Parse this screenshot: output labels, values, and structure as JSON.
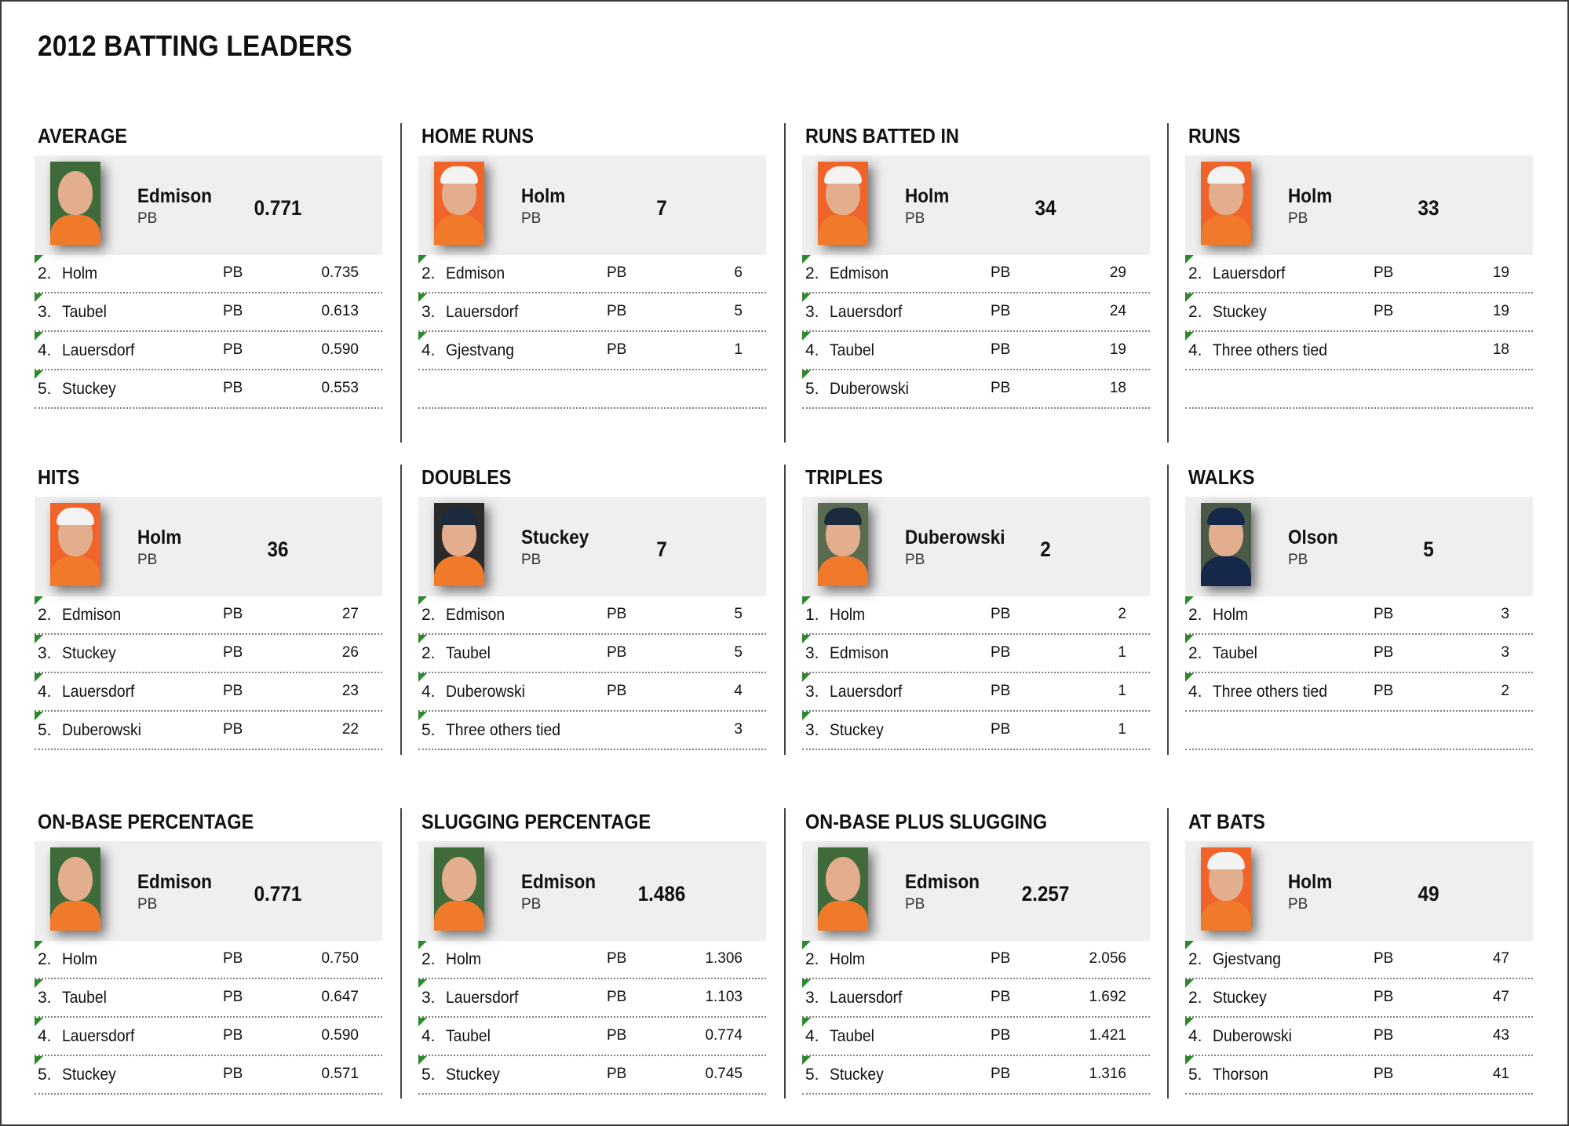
{
  "page": {
    "title": "2012 BATTING LEADERS"
  },
  "categories": [
    {
      "title": "AVERAGE",
      "leader": {
        "name": "Edmison",
        "team": "PB",
        "value": "0.771",
        "photo": "edmison"
      },
      "rows": [
        {
          "rank": "2.",
          "name": "Holm",
          "team": "PB",
          "value": "0.735"
        },
        {
          "rank": "3.",
          "name": "Taubel",
          "team": "PB",
          "value": "0.613"
        },
        {
          "rank": "4.",
          "name": "Lauersdorf",
          "team": "PB",
          "value": "0.590"
        },
        {
          "rank": "5.",
          "name": "Stuckey",
          "team": "PB",
          "value": "0.553"
        }
      ]
    },
    {
      "title": "HOME RUNS",
      "leader": {
        "name": "Holm",
        "team": "PB",
        "value": "7",
        "photo": "holm"
      },
      "rows": [
        {
          "rank": "2.",
          "name": "Edmison",
          "team": "PB",
          "value": "6"
        },
        {
          "rank": "3.",
          "name": "Lauersdorf",
          "team": "PB",
          "value": "5"
        },
        {
          "rank": "4.",
          "name": "Gjestvang",
          "team": "PB",
          "value": "1"
        },
        {
          "rank": "",
          "name": "",
          "team": "",
          "value": ""
        }
      ]
    },
    {
      "title": "RUNS BATTED IN",
      "leader": {
        "name": "Holm",
        "team": "PB",
        "value": "34",
        "photo": "holm"
      },
      "rows": [
        {
          "rank": "2.",
          "name": "Edmison",
          "team": "PB",
          "value": "29"
        },
        {
          "rank": "3.",
          "name": "Lauersdorf",
          "team": "PB",
          "value": "24"
        },
        {
          "rank": "4.",
          "name": "Taubel",
          "team": "PB",
          "value": "19"
        },
        {
          "rank": "5.",
          "name": "Duberowski",
          "team": "PB",
          "value": "18"
        }
      ]
    },
    {
      "title": "RUNS",
      "leader": {
        "name": "Holm",
        "team": "PB",
        "value": "33",
        "photo": "holm"
      },
      "rows": [
        {
          "rank": "2.",
          "name": "Lauersdorf",
          "team": "PB",
          "value": "19"
        },
        {
          "rank": "2.",
          "name": "Stuckey",
          "team": "PB",
          "value": "19"
        },
        {
          "rank": "4.",
          "name": "Three others tied",
          "team": "",
          "value": "18"
        },
        {
          "rank": "",
          "name": "",
          "team": "",
          "value": ""
        }
      ]
    },
    {
      "title": "HITS",
      "leader": {
        "name": "Holm",
        "team": "PB",
        "value": "36",
        "photo": "holm"
      },
      "rows": [
        {
          "rank": "2.",
          "name": "Edmison",
          "team": "PB",
          "value": "27"
        },
        {
          "rank": "3.",
          "name": "Stuckey",
          "team": "PB",
          "value": "26"
        },
        {
          "rank": "4.",
          "name": "Lauersdorf",
          "team": "PB",
          "value": "23"
        },
        {
          "rank": "5.",
          "name": "Duberowski",
          "team": "PB",
          "value": "22"
        }
      ]
    },
    {
      "title": "DOUBLES",
      "leader": {
        "name": "Stuckey",
        "team": "PB",
        "value": "7",
        "photo": "stuckey"
      },
      "rows": [
        {
          "rank": "2.",
          "name": "Edmison",
          "team": "PB",
          "value": "5"
        },
        {
          "rank": "2.",
          "name": "Taubel",
          "team": "PB",
          "value": "5"
        },
        {
          "rank": "4.",
          "name": "Duberowski",
          "team": "PB",
          "value": "4"
        },
        {
          "rank": "5.",
          "name": "Three others tied",
          "team": "",
          "value": "3"
        }
      ]
    },
    {
      "title": "TRIPLES",
      "leader": {
        "name": "Duberowski",
        "team": "PB",
        "value": "2",
        "photo": "duberowski"
      },
      "rows": [
        {
          "rank": "1.",
          "name": "Holm",
          "team": "PB",
          "value": "2"
        },
        {
          "rank": "3.",
          "name": "Edmison",
          "team": "PB",
          "value": "1"
        },
        {
          "rank": "3.",
          "name": "Lauersdorf",
          "team": "PB",
          "value": "1"
        },
        {
          "rank": "3.",
          "name": "Stuckey",
          "team": "PB",
          "value": "1"
        }
      ]
    },
    {
      "title": "WALKS",
      "leader": {
        "name": "Olson",
        "team": "PB",
        "value": "5",
        "photo": "olson"
      },
      "rows": [
        {
          "rank": "2.",
          "name": "Holm",
          "team": "PB",
          "value": "3"
        },
        {
          "rank": "2.",
          "name": "Taubel",
          "team": "PB",
          "value": "3"
        },
        {
          "rank": "4.",
          "name": "Three others tied",
          "team": "PB",
          "value": "2"
        },
        {
          "rank": "",
          "name": "",
          "team": "",
          "value": ""
        }
      ]
    },
    {
      "title": "ON-BASE PERCENTAGE",
      "leader": {
        "name": "Edmison",
        "team": "PB",
        "value": "0.771",
        "photo": "edmison"
      },
      "rows": [
        {
          "rank": "2.",
          "name": "Holm",
          "team": "PB",
          "value": "0.750"
        },
        {
          "rank": "3.",
          "name": "Taubel",
          "team": "PB",
          "value": "0.647"
        },
        {
          "rank": "4.",
          "name": "Lauersdorf",
          "team": "PB",
          "value": "0.590"
        },
        {
          "rank": "5.",
          "name": "Stuckey",
          "team": "PB",
          "value": "0.571"
        }
      ]
    },
    {
      "title": "SLUGGING PERCENTAGE",
      "leader": {
        "name": "Edmison",
        "team": "PB",
        "value": "1.486",
        "photo": "edmison"
      },
      "rows": [
        {
          "rank": "2.",
          "name": "Holm",
          "team": "PB",
          "value": "1.306"
        },
        {
          "rank": "3.",
          "name": "Lauersdorf",
          "team": "PB",
          "value": "1.103"
        },
        {
          "rank": "4.",
          "name": "Taubel",
          "team": "PB",
          "value": "0.774"
        },
        {
          "rank": "5.",
          "name": "Stuckey",
          "team": "PB",
          "value": "0.745"
        }
      ]
    },
    {
      "title": "ON-BASE PLUS SLUGGING",
      "leader": {
        "name": "Edmison",
        "team": "PB",
        "value": "2.257",
        "photo": "edmison"
      },
      "rows": [
        {
          "rank": "2.",
          "name": "Holm",
          "team": "PB",
          "value": "2.056"
        },
        {
          "rank": "3.",
          "name": "Lauersdorf",
          "team": "PB",
          "value": "1.692"
        },
        {
          "rank": "4.",
          "name": "Taubel",
          "team": "PB",
          "value": "1.421"
        },
        {
          "rank": "5.",
          "name": "Stuckey",
          "team": "PB",
          "value": "1.316"
        }
      ]
    },
    {
      "title": "AT BATS",
      "leader": {
        "name": "Holm",
        "team": "PB",
        "value": "49",
        "photo": "holm"
      },
      "rows": [
        {
          "rank": "2.",
          "name": "Gjestvang",
          "team": "PB",
          "value": "47"
        },
        {
          "rank": "2.",
          "name": "Stuckey",
          "team": "PB",
          "value": "47"
        },
        {
          "rank": "4.",
          "name": "Duberowski",
          "team": "PB",
          "value": "43"
        },
        {
          "rank": "5.",
          "name": "Thorson",
          "team": "PB",
          "value": "41"
        }
      ]
    }
  ],
  "photos": {
    "edmison": {
      "bg": "#3f6b3a",
      "shirt": "#f07a2a",
      "cap": ""
    },
    "holm": {
      "bg": "#f0642a",
      "shirt": "#f07a2a",
      "cap": "#f3f3f3"
    },
    "stuckey": {
      "bg": "#2b2b2b",
      "shirt": "#f07a2a",
      "cap": "#1c2a3e"
    },
    "duberowski": {
      "bg": "#5a6b52",
      "shirt": "#f07a2a",
      "cap": "#1c2a3e"
    },
    "olson": {
      "bg": "#4b5a48",
      "shirt": "#15284a",
      "cap": "#15284a"
    }
  },
  "colors": {
    "rank_marker": "#2c8a2c",
    "leader_box_bg": "#efefef"
  }
}
